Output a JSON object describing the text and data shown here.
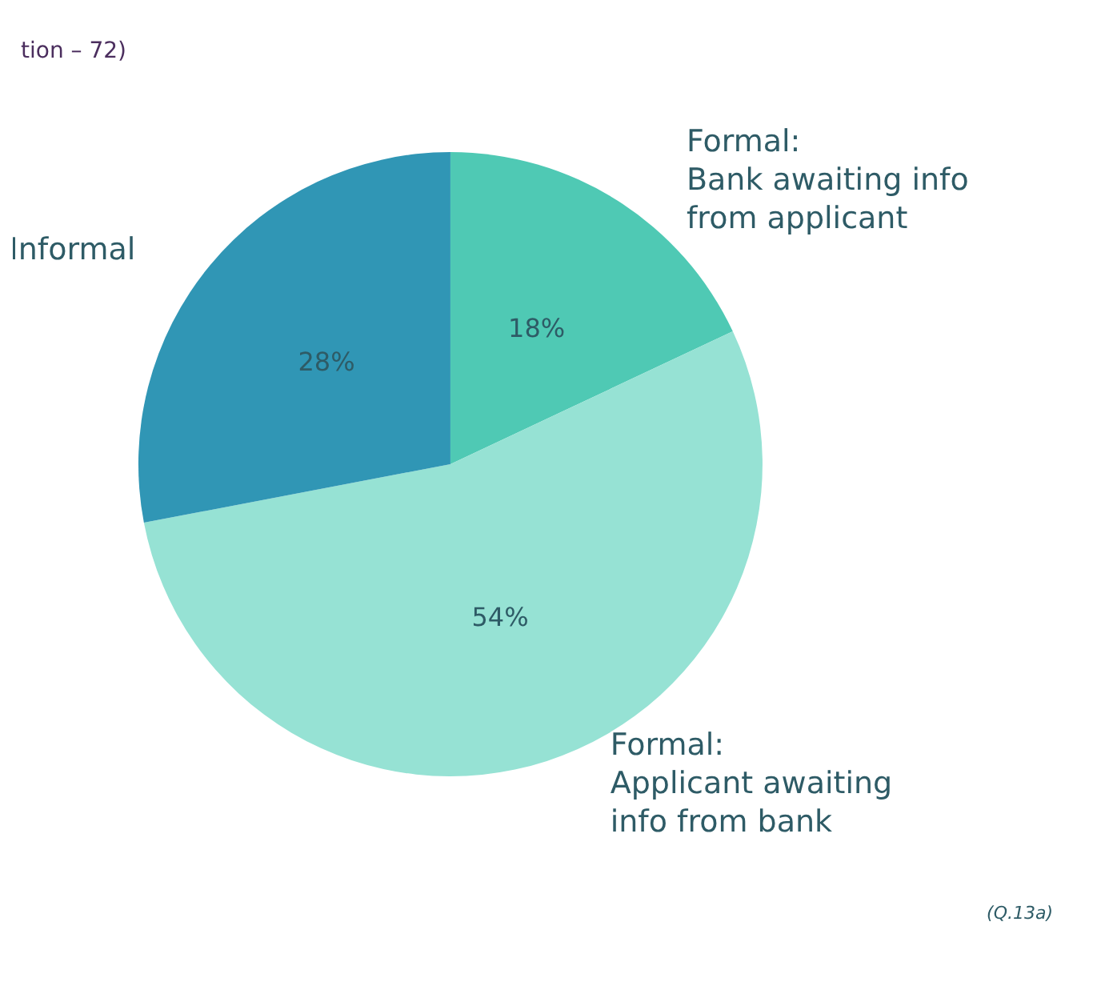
{
  "chart_data": {
    "type": "pie",
    "subtitle": "tion – 72)",
    "annotations": [
      "(Q.13a)"
    ],
    "categories": [
      "Formal:\nBank awaiting info\nfrom applicant",
      "Formal:\nApplicant awaiting\ninfo from bank",
      "Informal"
    ],
    "values": [
      18,
      54,
      28
    ],
    "colors": [
      "#4fc9b4",
      "#96e2d4",
      "#3096b5"
    ],
    "value_labels": [
      "18%",
      "54%",
      "28%"
    ],
    "legend": false
  }
}
